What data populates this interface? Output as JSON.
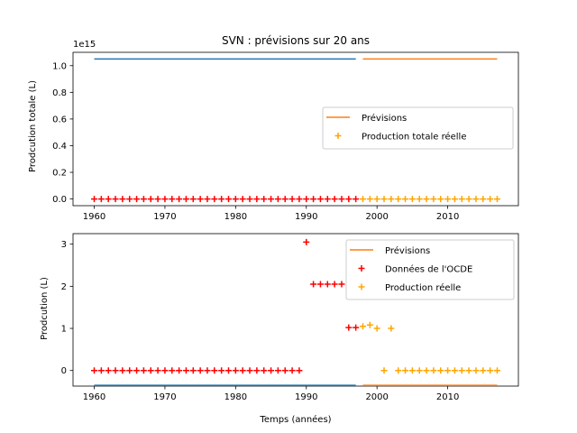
{
  "chart_data": [
    {
      "type": "line",
      "title": "SVN : prévisions sur 20 ans",
      "xlabel": "",
      "ylabel": "Prodcution totale (L)",
      "offset_text": "1e15",
      "xlim": [
        1957,
        2020
      ],
      "ylim": [
        -0.05,
        1.1
      ],
      "y_scale_note": "values ×1e15",
      "x_ticks": [
        1960,
        1970,
        1980,
        1990,
        2000,
        2010
      ],
      "y_ticks": [
        0.0,
        0.2,
        0.4,
        0.6,
        0.8,
        1.0
      ],
      "y_tick_labels": [
        "0.0",
        "0.2",
        "0.4",
        "0.6",
        "0.8",
        "1.0"
      ],
      "legend": "center right",
      "legend_entries": [
        {
          "label": "Prévisions",
          "marker": "line",
          "color": "#ff7f0e"
        },
        {
          "label": "Production totale réelle",
          "marker": "plus",
          "color": "#ffa500"
        }
      ],
      "series": [
        {
          "kind": "line",
          "color": "#1f77b4",
          "x": [
            1960,
            1997
          ],
          "y": [
            1.05,
            1.05
          ]
        },
        {
          "kind": "line",
          "color": "#ff7f0e",
          "x": [
            1998,
            2017
          ],
          "y": [
            1.05,
            1.05
          ]
        },
        {
          "kind": "scatter",
          "color": "#ff0000",
          "x": [
            1960,
            1961,
            1962,
            1963,
            1964,
            1965,
            1966,
            1967,
            1968,
            1969,
            1970,
            1971,
            1972,
            1973,
            1974,
            1975,
            1976,
            1977,
            1978,
            1979,
            1980,
            1981,
            1982,
            1983,
            1984,
            1985,
            1986,
            1987,
            1988,
            1989,
            1990,
            1991,
            1992,
            1993,
            1994,
            1995,
            1996,
            1997
          ],
          "y": [
            0,
            0,
            0,
            0,
            0,
            0,
            0,
            0,
            0,
            0,
            0,
            0,
            0,
            0,
            0,
            0,
            0,
            0,
            0,
            0,
            0,
            0,
            0,
            0,
            0,
            0,
            0,
            0,
            0,
            0,
            0,
            0,
            0,
            0,
            0,
            0,
            0,
            0
          ]
        },
        {
          "kind": "scatter",
          "color": "#ffa500",
          "x": [
            1998,
            1999,
            2000,
            2001,
            2002,
            2003,
            2004,
            2005,
            2006,
            2007,
            2008,
            2009,
            2010,
            2011,
            2012,
            2013,
            2014,
            2015,
            2016,
            2017
          ],
          "y": [
            0,
            0,
            0,
            0,
            0,
            0,
            0,
            0,
            0,
            0,
            0,
            0,
            0,
            0,
            0,
            0,
            0,
            0,
            0,
            0
          ]
        }
      ]
    },
    {
      "type": "line",
      "title": "",
      "xlabel": "Temps (années)",
      "ylabel": "Prodcution (L)",
      "xlim": [
        1957,
        2020
      ],
      "ylim": [
        -0.37,
        3.25
      ],
      "x_ticks": [
        1960,
        1970,
        1980,
        1990,
        2000,
        2010
      ],
      "y_ticks": [
        0,
        1,
        2,
        3
      ],
      "y_tick_labels": [
        "0",
        "1",
        "2",
        "3"
      ],
      "legend": "upper right",
      "legend_entries": [
        {
          "label": "Prévisions",
          "marker": "line",
          "color": "#ff7f0e"
        },
        {
          "label": "Données de l'OCDE",
          "marker": "plus",
          "color": "#ff0000"
        },
        {
          "label": "Production réelle",
          "marker": "plus",
          "color": "#ffa500"
        }
      ],
      "series": [
        {
          "kind": "line",
          "color": "#1f77b4",
          "x": [
            1960,
            1997
          ],
          "y": [
            -0.35,
            -0.35
          ]
        },
        {
          "kind": "line",
          "color": "#ff7f0e",
          "x": [
            1998,
            2017
          ],
          "y": [
            -0.35,
            -0.35
          ]
        },
        {
          "kind": "scatter",
          "color": "#ff0000",
          "x": [
            1960,
            1961,
            1962,
            1963,
            1964,
            1965,
            1966,
            1967,
            1968,
            1969,
            1970,
            1971,
            1972,
            1973,
            1974,
            1975,
            1976,
            1977,
            1978,
            1979,
            1980,
            1981,
            1982,
            1983,
            1984,
            1985,
            1986,
            1987,
            1988,
            1989,
            1990,
            1991,
            1992,
            1993,
            1994,
            1995,
            1996,
            1997
          ],
          "y": [
            0,
            0,
            0,
            0,
            0,
            0,
            0,
            0,
            0,
            0,
            0,
            0,
            0,
            0,
            0,
            0,
            0,
            0,
            0,
            0,
            0,
            0,
            0,
            0,
            0,
            0,
            0,
            0,
            0,
            0,
            3.05,
            2.05,
            2.05,
            2.05,
            2.05,
            2.05,
            1.02,
            1.02
          ]
        },
        {
          "kind": "scatter",
          "color": "#ffa500",
          "x": [
            1998,
            1999,
            2000,
            2001,
            2002,
            2003,
            2004,
            2005,
            2006,
            2007,
            2008,
            2009,
            2010,
            2011,
            2012,
            2013,
            2014,
            2015,
            2016,
            2017
          ],
          "y": [
            1.05,
            1.08,
            1.0,
            0,
            1.0,
            0,
            0,
            0,
            0,
            0,
            0,
            0,
            0,
            0,
            0,
            0,
            0,
            0,
            0,
            0
          ]
        }
      ]
    }
  ]
}
